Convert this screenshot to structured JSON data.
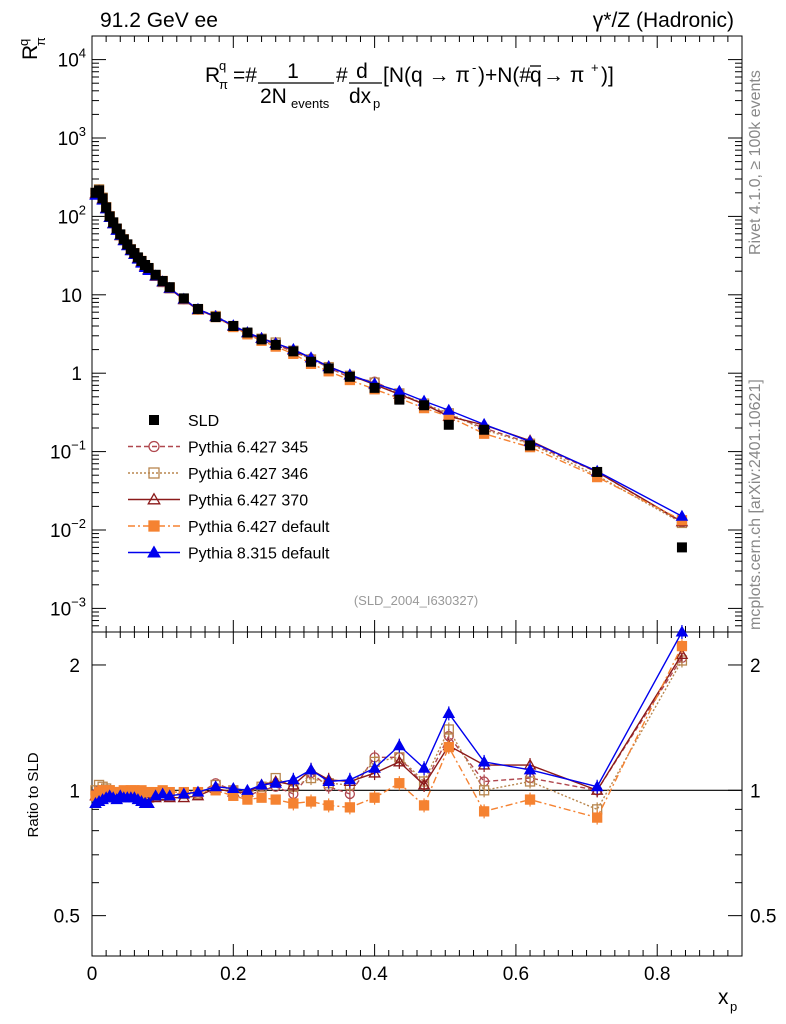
{
  "header": {
    "left": "91.2 GeV ee",
    "right": "γ*/Z (Hadronic)"
  },
  "side_labels": {
    "version": "Rivet 4.1.0, ≥ 100k events",
    "source": "mcplots.cern.ch [arXiv:2401.10621]"
  },
  "chart_data": {
    "type": "scatter",
    "analysis_tag": "(SLD_2004_I630327)",
    "formula": "R_π^q = 1/(2N_events) d/dx_p [N(q → π⁻) + N(q̄ → π⁺)]",
    "ylabel": "R^q_π",
    "xlabel": "x_p",
    "ratio_ylabel": "Ratio to SLD",
    "xlim": [
      0,
      0.92
    ],
    "ylim": [
      0.0005,
      20000
    ],
    "ratio_ylim": [
      0.4,
      2.4
    ],
    "x_ticks": [
      "0",
      "0.2",
      "0.4",
      "0.6",
      "0.8"
    ],
    "y_ticks": [
      "10^-3",
      "10^-2",
      "10^-1",
      "1",
      "10",
      "10^2",
      "10^3",
      "10^4"
    ],
    "ratio_ticks": [
      "0.5",
      "1",
      "2"
    ],
    "x": [
      0.005,
      0.01,
      0.015,
      0.02,
      0.025,
      0.03,
      0.035,
      0.04,
      0.045,
      0.05,
      0.055,
      0.06,
      0.065,
      0.07,
      0.075,
      0.08,
      0.09,
      0.1,
      0.11,
      0.13,
      0.15,
      0.175,
      0.2,
      0.22,
      0.24,
      0.26,
      0.285,
      0.31,
      0.335,
      0.365,
      0.4,
      0.435,
      0.47,
      0.505,
      0.555,
      0.62,
      0.715,
      0.835
    ],
    "series": [
      {
        "name": "SLD",
        "style": "data",
        "color": "#000000",
        "values": [
          200,
          215,
          170,
          130,
          100,
          84,
          70,
          59,
          51,
          44,
          38,
          34,
          30,
          27,
          24,
          22,
          18,
          15,
          12.5,
          9.0,
          6.6,
          5.2,
          4.0,
          3.3,
          2.7,
          2.3,
          1.9,
          1.4,
          1.15,
          0.9,
          0.65,
          0.46,
          0.39,
          0.22,
          0.19,
          0.12,
          0.055,
          0.006
        ]
      },
      {
        "name": "Pythia 6.427 345",
        "style": "open-circle-dashed",
        "color": "#b0484f",
        "ratio": [
          0.98,
          1.0,
          1.0,
          0.99,
          0.98,
          0.97,
          0.97,
          0.97,
          0.98,
          0.98,
          0.98,
          0.98,
          0.98,
          0.99,
          0.97,
          0.96,
          0.97,
          0.97,
          0.98,
          0.98,
          0.98,
          1.04,
          1.0,
          0.97,
          1.0,
          1.02,
          0.98,
          1.1,
          1.02,
          0.98,
          1.2,
          1.2,
          1.03,
          1.35,
          1.05,
          1.07,
          1.0,
          2.08
        ]
      },
      {
        "name": "Pythia 6.427 346",
        "style": "open-square-dotted",
        "color": "#b8864e",
        "ratio": [
          1.0,
          1.03,
          1.02,
          1.01,
          1.0,
          0.99,
          0.99,
          0.98,
          0.98,
          0.99,
          0.98,
          0.98,
          0.98,
          0.98,
          0.97,
          0.96,
          0.97,
          0.97,
          0.97,
          0.98,
          0.98,
          1.03,
          1.0,
          0.98,
          1.02,
          1.07,
          1.02,
          1.07,
          1.04,
          1.03,
          1.17,
          1.2,
          1.05,
          1.4,
          1.0,
          1.05,
          0.9,
          2.05
        ]
      },
      {
        "name": "Pythia 6.427 370",
        "style": "open-triangle-solid",
        "color": "#8b1a1a",
        "ratio": [
          0.97,
          0.98,
          0.98,
          0.97,
          0.97,
          0.96,
          0.96,
          0.96,
          0.97,
          0.97,
          0.97,
          0.97,
          0.97,
          0.97,
          0.97,
          0.96,
          0.96,
          0.97,
          0.96,
          0.96,
          0.97,
          1.01,
          0.99,
          0.99,
          1.03,
          1.05,
          1.03,
          1.12,
          1.06,
          1.05,
          1.1,
          1.17,
          1.03,
          1.28,
          1.15,
          1.15,
          1.0,
          2.12
        ]
      },
      {
        "name": "Pythia 6.427 default",
        "style": "filled-square-dashdot",
        "color": "#f58231",
        "ratio": [
          0.97,
          0.99,
          1.0,
          1.0,
          1.0,
          0.99,
          0.99,
          0.99,
          1.0,
          0.99,
          1.0,
          1.0,
          0.99,
          1.0,
          0.99,
          0.99,
          0.99,
          1.0,
          0.99,
          0.99,
          0.99,
          1.0,
          0.97,
          0.95,
          0.96,
          0.95,
          0.93,
          0.94,
          0.92,
          0.91,
          0.96,
          1.04,
          0.92,
          1.27,
          0.89,
          0.95,
          0.86,
          2.22
        ]
      },
      {
        "name": "Pythia 8.315 default",
        "style": "filled-triangle-solid",
        "color": "#0000ee",
        "ratio": [
          0.93,
          0.94,
          0.95,
          0.96,
          0.97,
          0.96,
          0.95,
          0.97,
          0.96,
          0.96,
          0.96,
          0.96,
          0.95,
          0.94,
          0.93,
          0.93,
          0.97,
          0.98,
          0.97,
          0.98,
          0.99,
          1.02,
          1.01,
          1.0,
          1.03,
          1.04,
          1.06,
          1.12,
          1.05,
          1.06,
          1.13,
          1.28,
          1.13,
          1.53,
          1.17,
          1.12,
          1.02,
          2.5
        ]
      }
    ]
  }
}
